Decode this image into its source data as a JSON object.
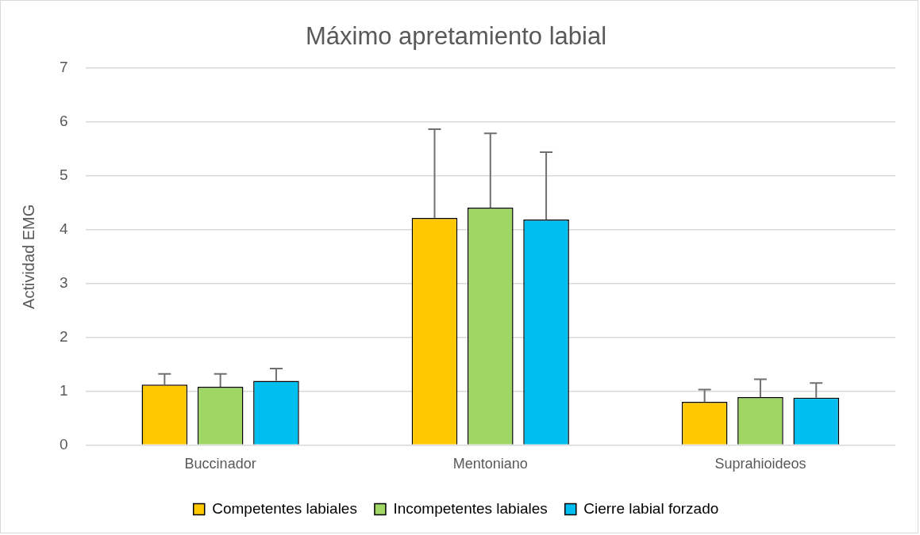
{
  "chart_data": {
    "type": "bar",
    "title": "Máximo apretamiento labial",
    "ylabel": "Actividad EMG",
    "categories": [
      "Buccinador",
      "Mentoniano",
      "Suprahioideos"
    ],
    "series": [
      {
        "name": "Competentes labiales",
        "color": "#ffc800",
        "values": [
          1.12,
          4.22,
          0.8
        ],
        "errors": [
          [
            1.12,
            1.32
          ],
          [
            4.22,
            5.87
          ],
          [
            0.8,
            1.03
          ]
        ]
      },
      {
        "name": "Incompetentes labiales",
        "color": "#a0d664",
        "values": [
          1.08,
          4.41,
          0.89
        ],
        "errors": [
          [
            1.08,
            1.32
          ],
          [
            4.41,
            5.79
          ],
          [
            0.89,
            1.22
          ]
        ]
      },
      {
        "name": "Cierre labial forzado",
        "color": "#00bef0",
        "values": [
          1.19,
          4.19,
          0.88
        ],
        "errors": [
          [
            1.19,
            1.42
          ],
          [
            4.19,
            5.44
          ],
          [
            0.88,
            1.15
          ]
        ]
      }
    ],
    "ylim": [
      0,
      7
    ],
    "yticks": [
      0,
      1,
      2,
      3,
      4,
      5,
      6,
      7
    ],
    "grid": "y",
    "legend": "bottom"
  }
}
